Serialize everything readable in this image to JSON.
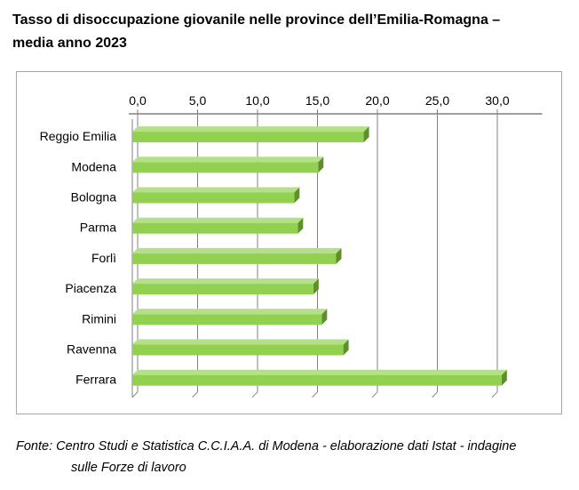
{
  "title": {
    "line1": "Tasso di disoccupazione giovanile nelle province dell’Emilia-Romagna –",
    "line2": "media anno 2023"
  },
  "source": {
    "line1": "Fonte: Centro Studi e Statistica C.C.I.A.A. di Modena - elaborazione dati Istat - indagine",
    "line2": "sulle Forze di lavoro"
  },
  "colors": {
    "bar_front": "#92d050",
    "bar_top": "#b4e08a",
    "bar_side": "#5f8f2a",
    "axis": "#808080",
    "grid": "#808080"
  },
  "chart_data": {
    "type": "bar",
    "orientation": "horizontal",
    "categories": [
      "Reggio Emilia",
      "Modena",
      "Bologna",
      "Parma",
      "Forlì",
      "Piacenza",
      "Rimini",
      "Ravenna",
      "Ferrara"
    ],
    "values": [
      19.3,
      15.5,
      13.5,
      13.8,
      17.0,
      15.1,
      15.8,
      17.6,
      30.8
    ],
    "tick_labels": [
      "0,0",
      "5,0",
      "10,0",
      "15,0",
      "20,0",
      "25,0",
      "30,0"
    ],
    "xlim": [
      0,
      33
    ],
    "axis_position": "top",
    "grid": true,
    "legend": false
  }
}
